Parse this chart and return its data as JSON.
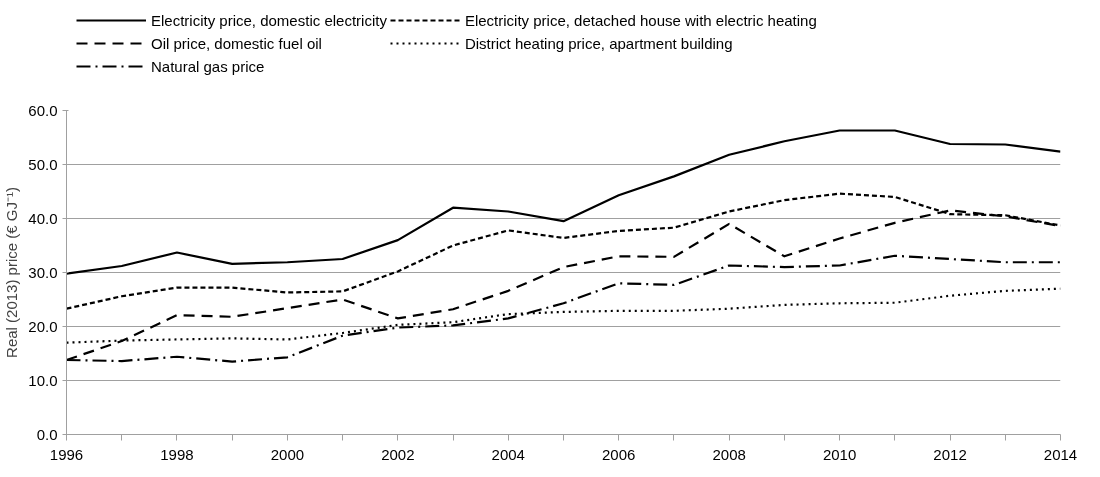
{
  "chart_data": {
    "type": "line",
    "ylabel": "Real (2013) price (€ GJ⁻¹)",
    "x": [
      1996,
      1997,
      1998,
      1999,
      2000,
      2001,
      2002,
      2003,
      2004,
      2005,
      2006,
      2007,
      2008,
      2009,
      2010,
      2011,
      2012,
      2013,
      2014
    ],
    "xlim": [
      1996,
      2014
    ],
    "xticks": [
      1996,
      {
        "value": 1997,
        "label": null
      },
      1998,
      {
        "value": 1999,
        "label": null
      },
      2000,
      {
        "value": 2001,
        "label": null
      },
      2002,
      {
        "value": 2003,
        "label": null
      },
      2004,
      {
        "value": 2005,
        "label": null
      },
      2006,
      {
        "value": 2007,
        "label": null
      },
      2008,
      {
        "value": 2009,
        "label": null
      },
      2010,
      {
        "value": 2011,
        "label": null
      },
      2012,
      {
        "value": 2013,
        "label": null
      },
      2014
    ],
    "ylim": [
      0,
      60
    ],
    "yticks": [
      {
        "value": 0,
        "label": "0.0"
      },
      {
        "value": 10,
        "label": "10.0"
      },
      {
        "value": 20,
        "label": "20.0"
      },
      {
        "value": 30,
        "label": "30.0"
      },
      {
        "value": 40,
        "label": "40.0"
      },
      {
        "value": 50,
        "label": "50.0"
      },
      {
        "value": 60,
        "label": "60.0"
      }
    ],
    "grid": "y",
    "legend": "top",
    "marker": "none",
    "series": [
      {
        "name": "Electricity price, domestic electricity",
        "color": "#000000",
        "line_style": "solid",
        "values": [
          29.8,
          31.2,
          33.7,
          31.6,
          31.9,
          32.5,
          36.0,
          42.0,
          41.3,
          39.5,
          44.3,
          47.8,
          51.8,
          54.3,
          56.3,
          56.3,
          53.8,
          53.7,
          52.4
        ]
      },
      {
        "name": "Electricity price, detached house with electric heating",
        "color": "#000000",
        "line_style": "dashed",
        "values": [
          23.3,
          25.6,
          27.2,
          27.2,
          26.3,
          26.5,
          30.2,
          35.0,
          37.8,
          36.4,
          37.7,
          38.3,
          41.3,
          43.4,
          44.6,
          44.0,
          40.8,
          40.6,
          38.7
        ]
      },
      {
        "name": "Oil price, domestic fuel oil",
        "color": "#000000",
        "line_style": "longdash",
        "values": [
          13.8,
          17.3,
          22.1,
          21.8,
          23.4,
          25.0,
          21.5,
          23.2,
          26.6,
          31.0,
          33.0,
          32.9,
          39.0,
          33.0,
          36.3,
          39.2,
          41.5,
          40.4,
          38.6
        ]
      },
      {
        "name": "District heating price, apartment building",
        "color": "#000000",
        "line_style": "dotted",
        "values": [
          17.0,
          17.4,
          17.6,
          17.8,
          17.6,
          18.8,
          20.3,
          20.8,
          22.3,
          22.7,
          22.9,
          22.9,
          23.3,
          24.0,
          24.3,
          24.4,
          25.7,
          26.6,
          27.0
        ]
      },
      {
        "name": "Natural gas price",
        "color": "#000000",
        "line_style": "dashdot",
        "values": [
          13.8,
          13.6,
          14.4,
          13.5,
          14.3,
          18.3,
          19.8,
          20.2,
          21.5,
          24.3,
          28.0,
          27.7,
          31.3,
          31.0,
          31.3,
          33.1,
          32.5,
          31.9,
          31.9
        ]
      }
    ]
  }
}
